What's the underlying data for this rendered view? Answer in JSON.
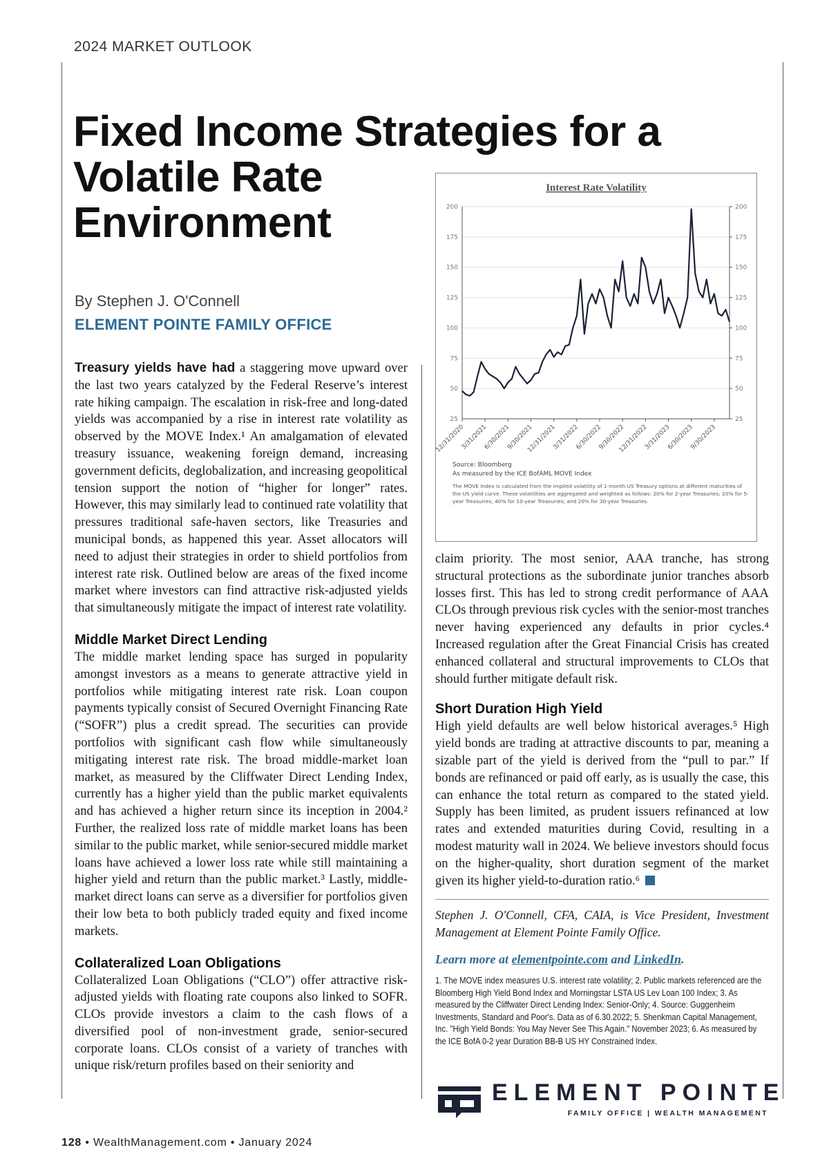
{
  "header": {
    "kicker": "2024 MARKET OUTLOOK"
  },
  "article": {
    "title": "Fixed Income Strategies for a Volatile Rate Environment",
    "byline": "By Stephen J. O'Connell",
    "organization": "ELEMENT POINTE FAMILY OFFICE",
    "intro_lead": "Treasury yields have had",
    "intro_body": " a staggering move upward over the last two years catalyzed by the Federal Reserve’s interest rate hiking campaign. The escalation in risk-free and long-dated yields was accompanied by a rise in interest rate volatility as observed by the MOVE Index.¹ An amalgamation of elevated treasury issuance, weakening foreign demand, increasing government deficits, deglobalization, and increasing geopolitical tension support the notion of “higher for longer” rates. However, this may similarly lead to continued rate volatility that pressures traditional safe-haven sectors, like Treasuries and municipal bonds, as happened this year. Asset allocators will need to adjust their strategies in order to shield portfolios from interest rate risk. Outlined below are areas of the fixed income market where investors can find attractive risk-adjusted yields that simultaneously mitigate the impact of interest rate volatility.",
    "sections": [
      {
        "heading": "Middle Market Direct Lending",
        "body": "The middle market lending space has surged in popularity amongst investors as a means to generate attractive yield in portfolios while mitigating interest rate risk. Loan coupon payments typically consist of Secured Overnight Financing Rate (“SOFR”) plus a credit spread. The securities can provide portfolios with significant cash flow while simultaneously mitigating interest rate risk. The broad middle-market loan market, as measured by the Cliffwater Direct Lending Index, currently has a higher yield than the public market equivalents and has achieved a higher return since its inception in 2004.²  Further, the realized loss rate of middle market loans has been similar to the public market, while senior-secured middle market loans have achieved a lower loss rate while still maintaining a higher yield and return than the public market.³ Lastly, middle-market direct loans can serve as a diversifier for portfolios given their low beta to both publicly traded equity and fixed income markets."
      },
      {
        "heading": "Collateralized Loan Obligations",
        "body": "Collateralized Loan Obligations (“CLO”) offer attractive risk-adjusted yields with floating rate coupons also linked to SOFR. CLOs provide investors a claim to the cash flows of a diversified pool of non-investment grade, senior-secured corporate loans. CLOs consist of a variety of tranches with unique risk/return profiles based on their seniority and",
        "continued": "claim priority. The most senior, AAA tranche, has strong structural protections as the subordinate junior tranches absorb losses first. This has led to strong credit performance of AAA CLOs through previous risk cycles with the senior-most tranches never having experienced any defaults in prior cycles.⁴ Increased regulation after the Great Financial Crisis has created enhanced collateral and structural improvements to CLOs that should further mitigate default risk."
      },
      {
        "heading": "Short Duration High Yield",
        "body": "High yield defaults are well below historical averages.⁵ High yield bonds are trading at attractive discounts to par, meaning a sizable part of the yield is derived from the “pull to par.” If bonds are refinanced or paid off early, as is usually the case, this can enhance the total return as compared to the stated yield. Supply has been limited, as prudent issuers refinanced at low rates and extended maturities during Covid, resulting in a modest maturity wall in 2024. We believe investors should focus on the higher-quality, short duration segment of the market given its higher yield-to-duration ratio.⁶"
      }
    ],
    "bio": "Stephen J. O'Connell, CFA, CAIA, is Vice President, Investment Management at Element Pointe Family Office.",
    "learn_more": {
      "prefix": "Learn more at ",
      "link1": "elementpointe.com",
      "middle": " and ",
      "link2": "LinkedIn",
      "suffix": "."
    },
    "footnotes": "1. The MOVE index measures U.S. interest rate volatility; 2. Public markets referenced are the Bloomberg High Yield Bond Index and Morningstar LSTA US Lev Loan 100 Index; 3. As measured by the Cliffwater Direct Lending Index: Senior-Only; 4. Source: Guggenheim Investments, Standard and Poor's. Data as of 6.30.2022; 5. Shenkman Capital Management, Inc. \"High Yield Bonds: You May Never See This Again.\" November 2023; 6. As measured by the ICE BofA 0-2 year Duration BB-B US HY Constrained Index."
  },
  "logo": {
    "name": "ELEMENT POINTE",
    "tagline": "FAMILY OFFICE | WEALTH MANAGEMENT"
  },
  "footer": {
    "page": "128",
    "text": " • WealthManagement.com • January 2024"
  },
  "colors": {
    "accent": "#2b6a93",
    "line": "#1c2236"
  },
  "chart_data": {
    "type": "line",
    "title": "Interest Rate Volatility",
    "source": "Source: Bloomberg",
    "measure": "As measured by the ICE BofAML MOVE Index",
    "note": "The MOVE Index is calculated from the implied volatility of 1-month US Treasury options at different maturities of the US yield curve. These volatilities are aggregated and weighted as follows: 20% for 2-year Treasuries; 20% for 5-year Treasuries; 40% for 10-year Treasuries; and 20% for 30-year Treasuries.",
    "ylim": [
      25,
      200
    ],
    "yticks": [
      25,
      50,
      75,
      100,
      125,
      150,
      175,
      200
    ],
    "xticks": [
      "12/31/2020",
      "3/31/2021",
      "6/30/2021",
      "9/30/2021",
      "12/31/2021",
      "3/31/2022",
      "6/30/2022",
      "9/30/2022",
      "12/31/2022",
      "3/31/2023",
      "6/30/2023",
      "9/30/2023"
    ],
    "x_months_from_start": [
      0,
      0.5,
      1,
      1.5,
      2,
      2.5,
      3,
      3.5,
      4,
      4.5,
      5,
      5.5,
      6,
      6.5,
      7,
      7.5,
      8,
      8.5,
      9,
      9.5,
      10,
      10.5,
      11,
      11.5,
      12,
      12.5,
      13,
      13.5,
      14,
      14.5,
      15,
      15.5,
      16,
      16.5,
      17,
      17.5,
      18,
      18.5,
      19,
      19.5,
      20,
      20.5,
      21,
      21.5,
      22,
      22.5,
      23,
      23.5,
      24,
      24.5,
      25,
      25.5,
      26,
      26.5,
      27,
      27.5,
      28,
      28.5,
      29,
      29.5,
      30,
      30.5,
      31,
      31.5,
      32,
      32.5,
      33,
      33.5,
      34,
      34.5,
      35
    ],
    "values": [
      48,
      45,
      44,
      47,
      60,
      72,
      66,
      62,
      60,
      58,
      55,
      50,
      55,
      58,
      68,
      62,
      58,
      54,
      57,
      62,
      63,
      72,
      78,
      82,
      76,
      80,
      78,
      85,
      86,
      100,
      110,
      140,
      95,
      120,
      128,
      120,
      132,
      125,
      110,
      100,
      140,
      130,
      155,
      125,
      118,
      128,
      120,
      158,
      150,
      130,
      120,
      128,
      140,
      112,
      125,
      118,
      110,
      100,
      112,
      125,
      198,
      145,
      130,
      125,
      140,
      120,
      128,
      112,
      110,
      115,
      105
    ]
  },
  "chart_xmax_months": 35
}
